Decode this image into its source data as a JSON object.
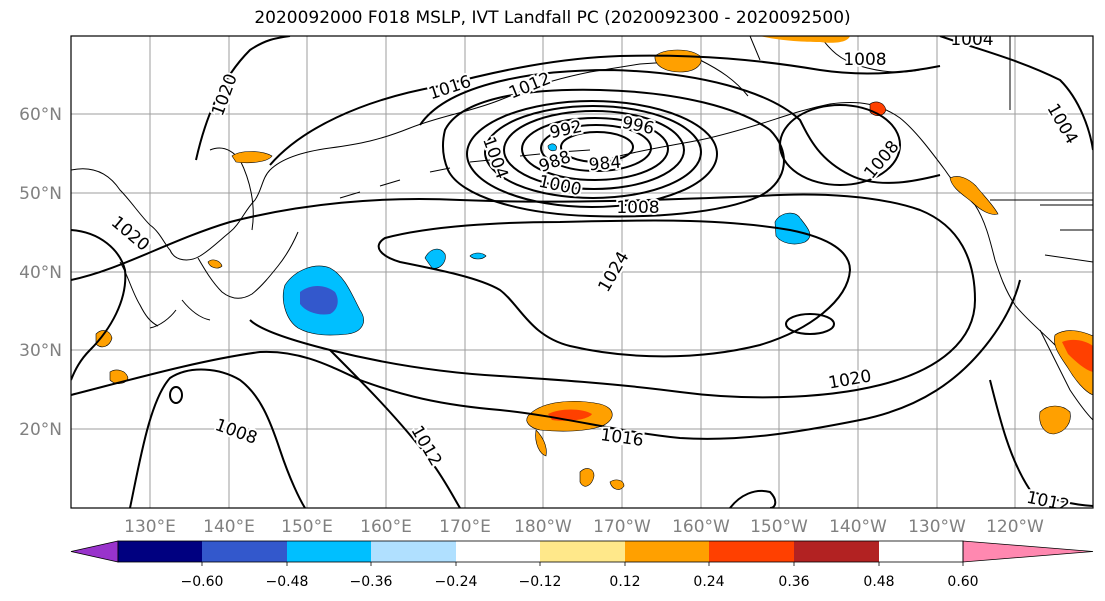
{
  "title": "2020092000 F018 MSLP, IVT Landfall PC (2020092300 - 2020092500)",
  "map": {
    "lat_ticks": [
      "60°N",
      "50°N",
      "40°N",
      "30°N",
      "20°N"
    ],
    "lon_ticks": [
      "130°E",
      "140°E",
      "150°E",
      "160°E",
      "170°E",
      "180°W",
      "170°W",
      "160°W",
      "150°W",
      "140°W",
      "130°W",
      "120°W"
    ],
    "tick_color": "#808080",
    "gridline_color": "#9e9e9e"
  },
  "contour_labels": [
    {
      "text": "1020"
    },
    {
      "text": "1016"
    },
    {
      "text": "1012"
    },
    {
      "text": "992"
    },
    {
      "text": "996"
    },
    {
      "text": "1004"
    },
    {
      "text": "988"
    },
    {
      "text": "984"
    },
    {
      "text": "1000"
    },
    {
      "text": "1008"
    },
    {
      "text": "1008"
    },
    {
      "text": "1008"
    },
    {
      "text": "1004"
    },
    {
      "text": "1004"
    },
    {
      "text": "1020"
    },
    {
      "text": "1024"
    },
    {
      "text": "1020"
    },
    {
      "text": "1016"
    },
    {
      "text": "1008"
    },
    {
      "text": "1012"
    },
    {
      "text": "1012"
    }
  ],
  "colorbar": {
    "tick_labels": [
      "−0.60",
      "−0.48",
      "−0.36",
      "−0.24",
      "−0.12",
      "0.12",
      "0.24",
      "0.36",
      "0.48",
      "0.60"
    ],
    "colors": [
      "#9933cc",
      "#000080",
      "#3358cc",
      "#00bfff",
      "#b0e0ff",
      "#ffffff",
      "#ffe88a",
      "#ffa000",
      "#ff4000",
      "#b22222",
      "#ff88b0"
    ]
  }
}
